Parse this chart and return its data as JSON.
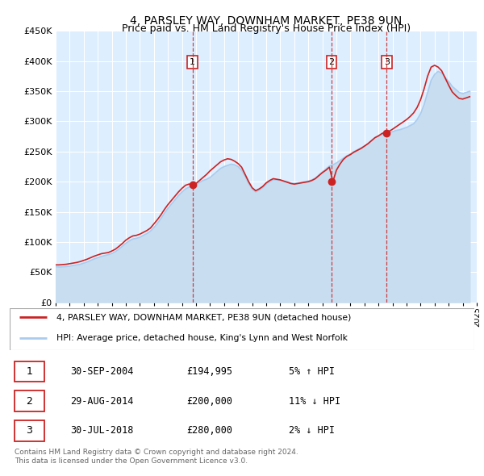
{
  "title": "4, PARSLEY WAY, DOWNHAM MARKET, PE38 9UN",
  "subtitle": "Price paid vs. HM Land Registry's House Price Index (HPI)",
  "hpi_color": "#aaccee",
  "hpi_fill_color": "#c8ddf0",
  "price_color": "#cc2222",
  "plot_bg_color": "#ddeeff",
  "grid_color": "#ffffff",
  "ylim": [
    0,
    450000
  ],
  "yticks": [
    0,
    50000,
    100000,
    150000,
    200000,
    250000,
    300000,
    350000,
    400000,
    450000
  ],
  "xlim_start": 1995,
  "xlim_end": 2025,
  "sales": [
    {
      "date_year": 2004.75,
      "price": 194995,
      "label": "1"
    },
    {
      "date_year": 2014.66,
      "price": 200000,
      "label": "2"
    },
    {
      "date_year": 2018.58,
      "price": 280000,
      "label": "3"
    }
  ],
  "legend_line1": "4, PARSLEY WAY, DOWNHAM MARKET, PE38 9UN (detached house)",
  "legend_line2": "HPI: Average price, detached house, King's Lynn and West Norfolk",
  "table_rows": [
    {
      "num": "1",
      "date": "30-SEP-2004",
      "price": "£194,995",
      "hpi": "5% ↑ HPI"
    },
    {
      "num": "2",
      "date": "29-AUG-2014",
      "price": "£200,000",
      "hpi": "11% ↓ HPI"
    },
    {
      "num": "3",
      "date": "30-JUL-2018",
      "price": "£280,000",
      "hpi": "2% ↓ HPI"
    }
  ],
  "footnote": "Contains HM Land Registry data © Crown copyright and database right 2024.\nThis data is licensed under the Open Government Licence v3.0.",
  "hpi_data_x": [
    1995.0,
    1995.25,
    1995.5,
    1995.75,
    1996.0,
    1996.25,
    1996.5,
    1996.75,
    1997.0,
    1997.25,
    1997.5,
    1997.75,
    1998.0,
    1998.25,
    1998.5,
    1998.75,
    1999.0,
    1999.25,
    1999.5,
    1999.75,
    2000.0,
    2000.25,
    2000.5,
    2000.75,
    2001.0,
    2001.25,
    2001.5,
    2001.75,
    2002.0,
    2002.25,
    2002.5,
    2002.75,
    2003.0,
    2003.25,
    2003.5,
    2003.75,
    2004.0,
    2004.25,
    2004.5,
    2004.75,
    2005.0,
    2005.25,
    2005.5,
    2005.75,
    2006.0,
    2006.25,
    2006.5,
    2006.75,
    2007.0,
    2007.25,
    2007.5,
    2007.75,
    2008.0,
    2008.25,
    2008.5,
    2008.75,
    2009.0,
    2009.25,
    2009.5,
    2009.75,
    2010.0,
    2010.25,
    2010.5,
    2010.75,
    2011.0,
    2011.25,
    2011.5,
    2011.75,
    2012.0,
    2012.25,
    2012.5,
    2012.75,
    2013.0,
    2013.25,
    2013.5,
    2013.75,
    2014.0,
    2014.25,
    2014.5,
    2014.75,
    2015.0,
    2015.25,
    2015.5,
    2015.75,
    2016.0,
    2016.25,
    2016.5,
    2016.75,
    2017.0,
    2017.25,
    2017.5,
    2017.75,
    2018.0,
    2018.25,
    2018.5,
    2018.75,
    2019.0,
    2019.25,
    2019.5,
    2019.75,
    2020.0,
    2020.25,
    2020.5,
    2020.75,
    2021.0,
    2021.25,
    2021.5,
    2021.75,
    2022.0,
    2022.25,
    2022.5,
    2022.75,
    2023.0,
    2023.25,
    2023.5,
    2023.75,
    2024.0,
    2024.25,
    2024.5
  ],
  "hpi_data_y": [
    59000,
    58500,
    58800,
    59200,
    60000,
    61000,
    62000,
    63000,
    65000,
    67000,
    69500,
    72000,
    74000,
    76000,
    77500,
    79000,
    81000,
    84000,
    88000,
    93000,
    98000,
    102000,
    105000,
    106000,
    108000,
    111000,
    114000,
    118000,
    124000,
    131000,
    139000,
    148000,
    156000,
    163000,
    170000,
    177000,
    183000,
    188000,
    191000,
    193000,
    195000,
    199000,
    202000,
    204000,
    207000,
    212000,
    217000,
    222000,
    225000,
    227000,
    229000,
    228000,
    225000,
    219000,
    209000,
    197000,
    188000,
    183000,
    186000,
    190000,
    196000,
    200000,
    203000,
    203000,
    202000,
    201000,
    200000,
    198000,
    197000,
    198000,
    199000,
    200000,
    201000,
    203000,
    206000,
    211000,
    216000,
    221000,
    226000,
    228000,
    231000,
    235000,
    239000,
    243000,
    246000,
    250000,
    253000,
    256000,
    259000,
    263000,
    268000,
    273000,
    276000,
    278000,
    280000,
    281000,
    283000,
    285000,
    286000,
    288000,
    290000,
    293000,
    296000,
    303000,
    313000,
    328000,
    348000,
    368000,
    378000,
    383000,
    380000,
    373000,
    366000,
    358000,
    353000,
    348000,
    346000,
    348000,
    350000
  ],
  "price_data_x": [
    1995.0,
    1995.25,
    1995.5,
    1995.75,
    1996.0,
    1996.25,
    1996.5,
    1996.75,
    1997.0,
    1997.25,
    1997.5,
    1997.75,
    1998.0,
    1998.25,
    1998.5,
    1998.75,
    1999.0,
    1999.25,
    1999.5,
    1999.75,
    2000.0,
    2000.25,
    2000.5,
    2000.75,
    2001.0,
    2001.25,
    2001.5,
    2001.75,
    2002.0,
    2002.25,
    2002.5,
    2002.75,
    2003.0,
    2003.25,
    2003.5,
    2003.75,
    2004.0,
    2004.25,
    2004.5,
    2004.75,
    2005.0,
    2005.25,
    2005.5,
    2005.75,
    2006.0,
    2006.25,
    2006.5,
    2006.75,
    2007.0,
    2007.25,
    2007.5,
    2007.75,
    2008.0,
    2008.25,
    2008.5,
    2008.75,
    2009.0,
    2009.25,
    2009.5,
    2009.75,
    2010.0,
    2010.25,
    2010.5,
    2010.75,
    2011.0,
    2011.25,
    2011.5,
    2011.75,
    2012.0,
    2012.25,
    2012.5,
    2012.75,
    2013.0,
    2013.25,
    2013.5,
    2013.75,
    2014.0,
    2014.25,
    2014.5,
    2014.75,
    2015.0,
    2015.25,
    2015.5,
    2015.75,
    2016.0,
    2016.25,
    2016.5,
    2016.75,
    2017.0,
    2017.25,
    2017.5,
    2017.75,
    2018.0,
    2018.25,
    2018.5,
    2018.75,
    2019.0,
    2019.25,
    2019.5,
    2019.75,
    2020.0,
    2020.25,
    2020.5,
    2020.75,
    2021.0,
    2021.25,
    2021.5,
    2021.75,
    2022.0,
    2022.25,
    2022.5,
    2022.75,
    2023.0,
    2023.25,
    2023.5,
    2023.75,
    2024.0,
    2024.25,
    2024.5
  ],
  "price_data_y": [
    62000,
    62000,
    62500,
    63000,
    64000,
    65000,
    66000,
    67500,
    69500,
    71500,
    74000,
    76500,
    78500,
    80500,
    81500,
    82500,
    85000,
    88000,
    92500,
    97500,
    103000,
    107000,
    110000,
    111000,
    113000,
    116000,
    119000,
    123000,
    130000,
    137000,
    145000,
    154000,
    162000,
    169000,
    176000,
    183000,
    189000,
    194000,
    196000,
    194995,
    197000,
    202000,
    207000,
    212000,
    218000,
    223000,
    228000,
    233000,
    236000,
    238000,
    237000,
    234000,
    230000,
    224000,
    212000,
    200000,
    190000,
    185000,
    188000,
    192000,
    198000,
    202000,
    205000,
    204000,
    203000,
    201000,
    199000,
    197000,
    196000,
    197000,
    198000,
    199000,
    200000,
    202000,
    205000,
    210000,
    215000,
    219000,
    224000,
    200000,
    219000,
    229000,
    237000,
    242000,
    245000,
    249000,
    252000,
    255000,
    259000,
    263000,
    268000,
    273000,
    276000,
    280000,
    282000,
    283500,
    287000,
    291000,
    295000,
    299000,
    303000,
    308000,
    314000,
    323000,
    336000,
    354000,
    375000,
    390000,
    393000,
    390000,
    384000,
    372000,
    360000,
    349000,
    343000,
    338000,
    337000,
    339000,
    341000
  ]
}
